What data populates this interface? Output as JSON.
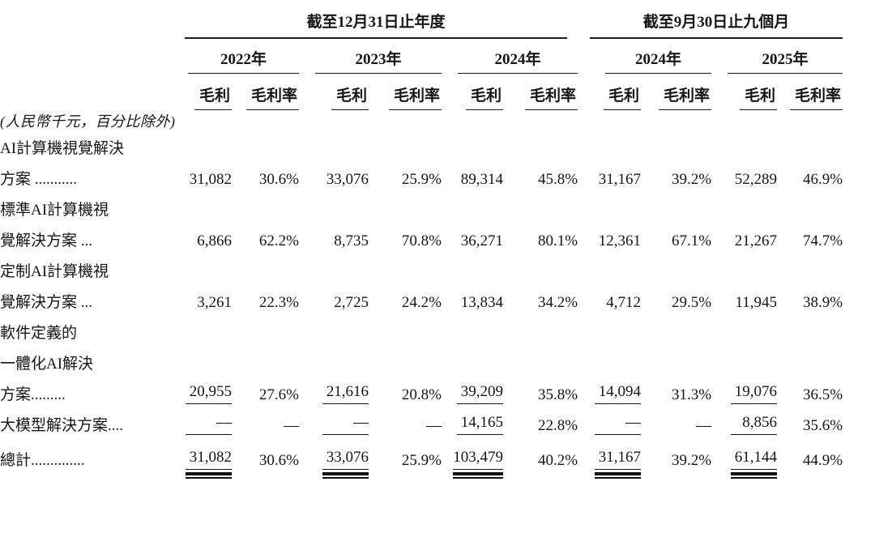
{
  "table": {
    "unit_note": "(人民幣千元，百分比除外)",
    "col_groups": [
      {
        "title": "截至12月31日止年度",
        "years": [
          "2022年",
          "2023年",
          "2024年"
        ]
      },
      {
        "title": "截至9月30日止九個月",
        "years": [
          "2024年",
          "2025年"
        ]
      }
    ],
    "sub_headers": {
      "profit": "毛利",
      "margin": "毛利率"
    },
    "rows": [
      {
        "lines": [
          {
            "text": "AI計算機視覺解決",
            "indent": 0
          },
          {
            "text": "方案 ...........",
            "indent": 1
          }
        ],
        "bold_label": true,
        "bold_values": false,
        "underline": "none",
        "values": [
          "31,082",
          "30.6%",
          "33,076",
          "25.9%",
          "89,314",
          "45.8%",
          "31,167",
          "39.2%",
          "52,289",
          "46.9%"
        ]
      },
      {
        "lines": [
          {
            "text": "標準AI計算機視",
            "indent": 2
          },
          {
            "text": "覺解決方案 ...",
            "indent": 3
          }
        ],
        "bold_label": false,
        "bold_values": false,
        "underline": "none",
        "values": [
          "6,866",
          "62.2%",
          "8,735",
          "70.8%",
          "36,271",
          "80.1%",
          "12,361",
          "67.1%",
          "21,267",
          "74.7%"
        ]
      },
      {
        "lines": [
          {
            "text": "定制AI計算機視",
            "indent": 2
          },
          {
            "text": "覺解決方案 ...",
            "indent": 3
          }
        ],
        "bold_label": false,
        "bold_values": false,
        "underline": "none",
        "values": [
          "3,261",
          "22.3%",
          "2,725",
          "24.2%",
          "13,834",
          "34.2%",
          "4,712",
          "29.5%",
          "11,945",
          "38.9%"
        ]
      },
      {
        "lines": [
          {
            "text": "軟件定義的",
            "indent": 2
          },
          {
            "text": "一體化AI解決",
            "indent": 4
          },
          {
            "text": "方案.........",
            "indent": 5
          }
        ],
        "bold_label": false,
        "bold_values": false,
        "underline": "single",
        "values": [
          "20,955",
          "27.6%",
          "21,616",
          "20.8%",
          "39,209",
          "35.8%",
          "14,094",
          "31.3%",
          "19,076",
          "36.5%"
        ]
      },
      {
        "lines": [
          {
            "text": "大模型解決方案....",
            "indent": 0
          }
        ],
        "bold_label": true,
        "bold_values": false,
        "underline": "single",
        "values": [
          "—",
          "—",
          "—",
          "—",
          "14,165",
          "22.8%",
          "—",
          "—",
          "8,856",
          "35.6%"
        ]
      },
      {
        "lines": [
          {
            "text": "總計..............",
            "indent": 0
          }
        ],
        "bold_label": true,
        "bold_values": true,
        "underline": "double",
        "total": true,
        "values": [
          "31,082",
          "30.6%",
          "33,076",
          "25.9%",
          "103,479",
          "40.2%",
          "31,167",
          "39.2%",
          "61,144",
          "44.9%"
        ]
      }
    ]
  }
}
